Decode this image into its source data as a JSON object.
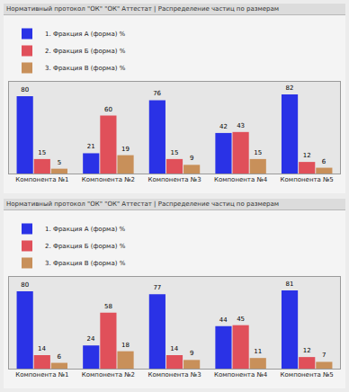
{
  "chart_data": [
    {
      "type": "bar",
      "title": "Нормативный протокол \"ОК\" \"ОК\" Аттестат | Распределение частиц по размерам",
      "categories": [
        "Компонента №1",
        "Компонента №2",
        "Компонента №3",
        "Компонента №4",
        "Компонента №5"
      ],
      "series": [
        {
          "name": "1. Фракция А (форма) %",
          "color": "#2a32e6",
          "values": [
            80,
            21,
            76,
            42,
            82
          ]
        },
        {
          "name": "2. Фракция Б (форма) %",
          "color": "#e0505a",
          "values": [
            15,
            60,
            15,
            43,
            12
          ]
        },
        {
          "name": "3. Фракция В (форма) %",
          "color": "#c8905a",
          "values": [
            5,
            19,
            9,
            15,
            6
          ]
        }
      ],
      "ylim": [
        0,
        95
      ],
      "grid": false,
      "legend": "top left",
      "data_labels": true,
      "tick_labels": "x"
    },
    {
      "type": "bar",
      "title": "Нормативный протокол \"ОК\" \"ОК\" Аттестат | Распределение частиц по размерам",
      "categories": [
        "Компонента №1",
        "Компонента №2",
        "Компонента №3",
        "Компонента №4",
        "Компонента №5"
      ],
      "series": [
        {
          "name": "1. Фракция А (форма) %",
          "color": "#2a32e6",
          "values": [
            80,
            24,
            77,
            44,
            81
          ]
        },
        {
          "name": "2. Фракция Б (форма) %",
          "color": "#e0505a",
          "values": [
            14,
            58,
            14,
            45,
            12
          ]
        },
        {
          "name": "3. Фракция В (форма) %",
          "color": "#c8905a",
          "values": [
            6,
            18,
            9,
            11,
            7
          ]
        }
      ],
      "ylim": [
        0,
        95
      ],
      "grid": false,
      "legend": "top left",
      "data_labels": true,
      "tick_labels": "x"
    }
  ]
}
